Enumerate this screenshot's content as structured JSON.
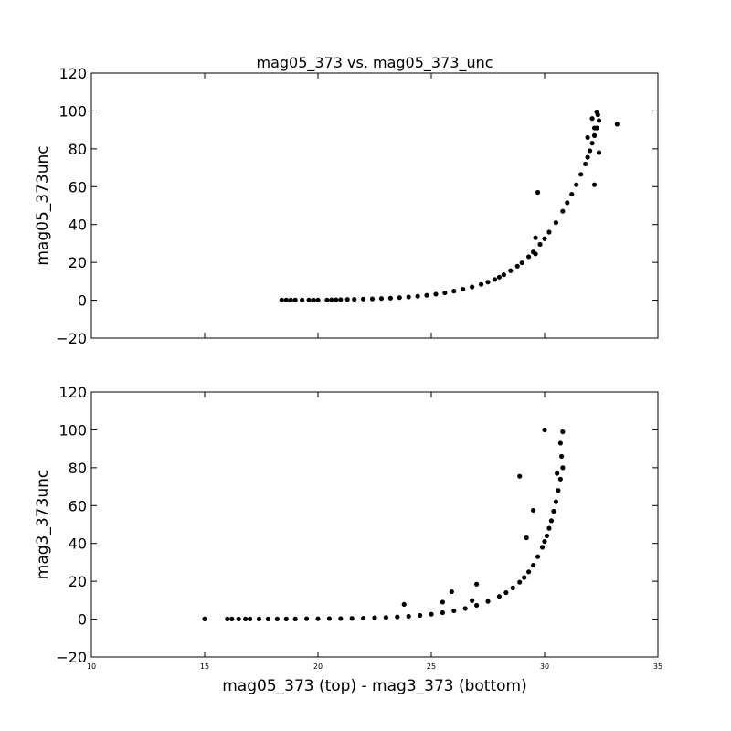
{
  "chart_data": [
    {
      "type": "scatter",
      "title": "mag05_373 vs. mag05_373_unc",
      "xlabel": "",
      "ylabel": "mag05_373unc",
      "xlim": [
        10,
        35
      ],
      "ylim": [
        -20,
        120
      ],
      "xticks": [
        "10",
        "15",
        "20",
        "25",
        "30",
        "35"
      ],
      "yticks": [
        "−20",
        "0",
        "20",
        "40",
        "60",
        "80",
        "100",
        "120"
      ],
      "xtick_labels_visible": false,
      "grid": false,
      "marker_color": "#000000",
      "series": [
        {
          "x": [
            18.4,
            18.6,
            18.8,
            19.0,
            19.3,
            19.6,
            19.8,
            20.0,
            20.4,
            20.6,
            20.8,
            21.0,
            21.3,
            21.6,
            22.0,
            22.4,
            22.8,
            23.2,
            23.6,
            24.0,
            24.4,
            24.8,
            25.2,
            25.6,
            26.0,
            26.4,
            26.8,
            27.2,
            27.5,
            27.8,
            28.0,
            28.2,
            28.5,
            28.8,
            29.0,
            29.3,
            29.5,
            29.8,
            30.0,
            30.2,
            30.5,
            30.8,
            31.0,
            31.2,
            31.4,
            31.6,
            31.8,
            31.9,
            32.0,
            32.1,
            32.2,
            32.3,
            32.4,
            32.3,
            32.35,
            29.7,
            29.6,
            29.6,
            32.2,
            32.4,
            33.2,
            31.9,
            32.2,
            32.1
          ],
          "y": [
            0.1,
            0.1,
            0.1,
            0.1,
            0.1,
            0.1,
            0.1,
            0.1,
            0.1,
            0.2,
            0.2,
            0.3,
            0.4,
            0.5,
            0.6,
            0.7,
            0.9,
            1.1,
            1.4,
            1.7,
            2.1,
            2.6,
            3.2,
            3.9,
            4.8,
            5.8,
            7.0,
            8.4,
            9.6,
            11.0,
            12.2,
            13.5,
            15.6,
            18.0,
            19.8,
            23.0,
            25.5,
            29.5,
            32.5,
            36.0,
            41.0,
            47.0,
            51.5,
            56.0,
            61.0,
            66.5,
            72.0,
            75.5,
            79.0,
            83.0,
            87.0,
            91.0,
            95.0,
            99.5,
            98.0,
            57.0,
            33.0,
            24.5,
            61.0,
            78.0,
            93.0,
            86.0,
            91.0,
            96.0
          ]
        }
      ]
    },
    {
      "type": "scatter",
      "title": "",
      "xlabel": "mag05_373 (top) - mag3_373 (bottom)",
      "ylabel": "mag3_373unc",
      "xlim": [
        10,
        35
      ],
      "ylim": [
        -20,
        120
      ],
      "xticks": [
        "10",
        "15",
        "20",
        "25",
        "30",
        "35"
      ],
      "yticks": [
        "−20",
        "0",
        "20",
        "40",
        "60",
        "80",
        "100",
        "120"
      ],
      "xtick_labels_visible": true,
      "grid": false,
      "marker_color": "#000000",
      "series": [
        {
          "x": [
            15.0,
            16.0,
            16.2,
            16.5,
            16.8,
            17.0,
            17.4,
            17.8,
            18.2,
            18.6,
            19.0,
            19.5,
            20.0,
            20.5,
            21.0,
            21.5,
            22.0,
            22.5,
            23.0,
            23.5,
            24.0,
            24.5,
            25.0,
            25.5,
            26.0,
            26.5,
            27.0,
            27.5,
            28.0,
            28.3,
            28.6,
            28.9,
            29.1,
            29.3,
            29.5,
            29.7,
            29.9,
            30.0,
            30.1,
            30.2,
            30.3,
            30.4,
            30.5,
            30.6,
            30.7,
            30.8,
            30.75,
            30.8,
            30.0,
            28.9,
            29.5,
            29.2,
            23.8,
            25.5,
            25.9,
            27.0,
            26.8,
            30.7,
            30.55
          ],
          "y": [
            0.1,
            0.1,
            0.1,
            0.1,
            0.1,
            0.1,
            0.1,
            0.1,
            0.1,
            0.1,
            0.1,
            0.2,
            0.2,
            0.3,
            0.3,
            0.4,
            0.5,
            0.7,
            0.9,
            1.2,
            1.5,
            2.0,
            2.6,
            3.4,
            4.4,
            5.6,
            7.3,
            9.4,
            12.0,
            14.0,
            16.5,
            19.5,
            22.0,
            25.0,
            28.5,
            33.0,
            38.0,
            41.0,
            44.0,
            48.0,
            52.0,
            57.0,
            62.0,
            68.0,
            74.0,
            80.0,
            86.0,
            99.0,
            100.0,
            75.5,
            57.5,
            43.0,
            7.8,
            9.0,
            14.5,
            18.5,
            9.8,
            93.0,
            77.0
          ]
        }
      ]
    }
  ]
}
